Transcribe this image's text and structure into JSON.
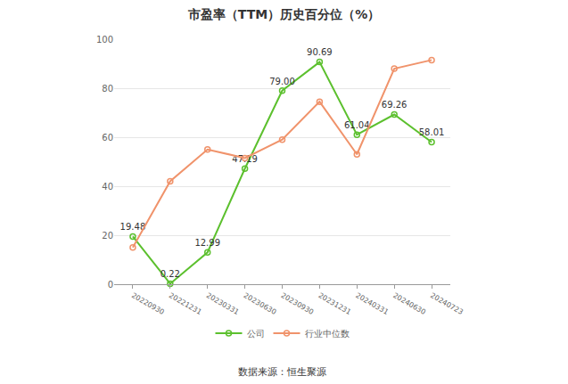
{
  "chart_data": {
    "type": "line",
    "title": "市盈率（TTM）历史百分位（%）",
    "categories": [
      "20220930",
      "20221231",
      "20230331",
      "20230630",
      "20230930",
      "20231231",
      "20240331",
      "20240630",
      "20240723"
    ],
    "series": [
      {
        "name": "公司",
        "color": "#5cc02e",
        "marker": "circle",
        "data_labels": true,
        "values": [
          19.48,
          0.22,
          12.99,
          47.19,
          79.0,
          90.69,
          61.04,
          69.26,
          58.01
        ],
        "value_labels": [
          "19.48",
          "0.22",
          "12.99",
          "47.19",
          "79.00",
          "90.69",
          "61.04",
          "69.26",
          "58.01"
        ]
      },
      {
        "name": "行业中位数",
        "color": "#f0936b",
        "marker": "circle",
        "data_labels": false,
        "values": [
          15,
          42,
          55,
          51.5,
          59,
          74.5,
          53,
          88,
          91.5
        ]
      }
    ],
    "ylim": [
      0,
      100
    ],
    "yticks": [
      0,
      20,
      40,
      60,
      80,
      100
    ],
    "grid": true,
    "legend": "bottom",
    "annotations": [
      "数据来源：恒生聚源"
    ]
  }
}
